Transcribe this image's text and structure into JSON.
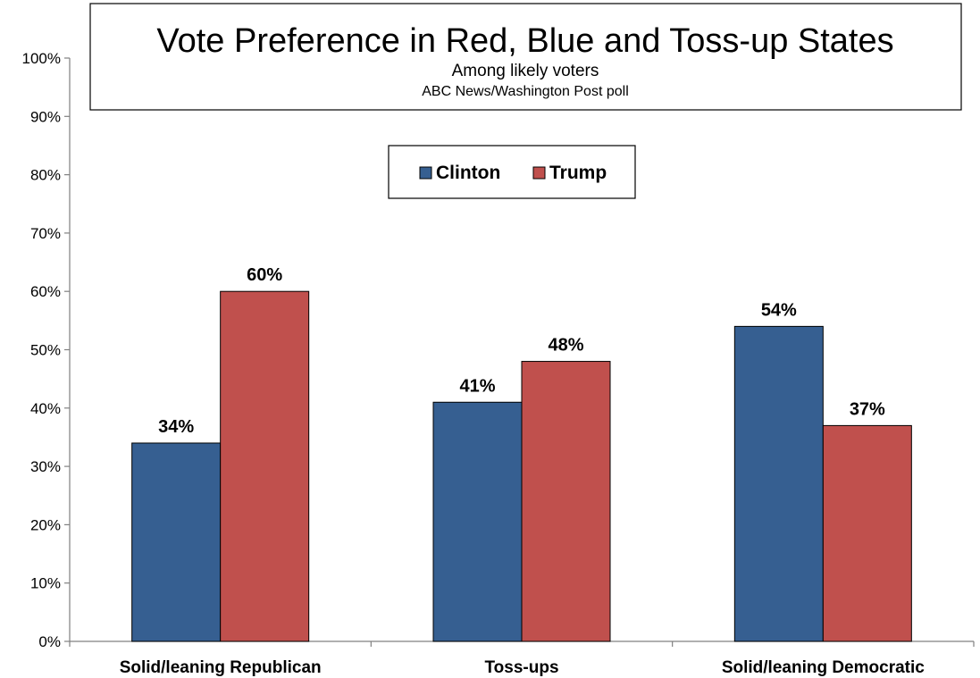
{
  "chart_data": {
    "type": "bar",
    "title": "Vote Preference in Red, Blue and Toss-up States",
    "subtitle": "Among likely voters",
    "source": "ABC News/Washington  Post poll",
    "categories": [
      "Solid/leaning Republican",
      "Toss-ups",
      "Solid/leaning Democratic"
    ],
    "series": [
      {
        "name": "Clinton",
        "values": [
          34,
          41,
          54
        ],
        "labels": [
          "34%",
          "41%",
          "54%"
        ],
        "color": "#365f91"
      },
      {
        "name": "Trump",
        "values": [
          60,
          48,
          37
        ],
        "labels": [
          "60%",
          "48%",
          "37%"
        ],
        "color": "#c0504d"
      }
    ],
    "ylim": [
      0,
      100
    ],
    "yticks": [
      "0%",
      "10%",
      "20%",
      "30%",
      "40%",
      "50%",
      "60%",
      "70%",
      "80%",
      "90%",
      "100%"
    ],
    "xlabel": "",
    "ylabel": "",
    "grid": false,
    "legend_position": "top-center"
  }
}
